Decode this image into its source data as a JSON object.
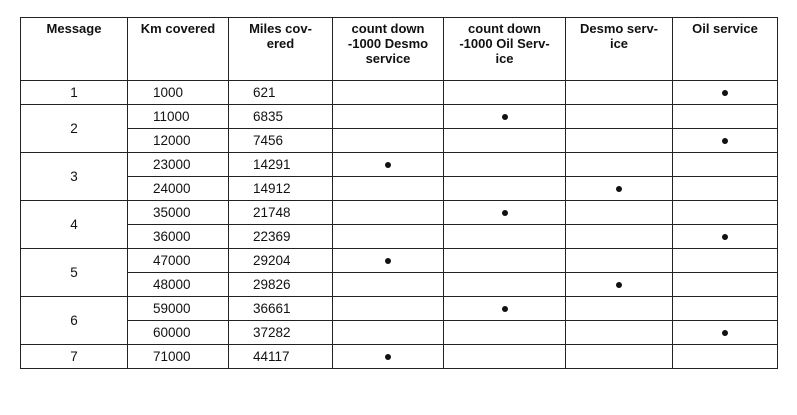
{
  "columns": [
    {
      "key": "message",
      "lines": [
        "Message"
      ]
    },
    {
      "key": "km",
      "lines": [
        "Km covered"
      ]
    },
    {
      "key": "miles",
      "lines": [
        "Miles cov-",
        "ered"
      ]
    },
    {
      "key": "desmo_countdown",
      "lines": [
        "count down",
        "-1000 Desmo",
        "service"
      ]
    },
    {
      "key": "oil_countdown",
      "lines": [
        "count down",
        "-1000 Oil Serv-",
        "ice"
      ]
    },
    {
      "key": "desmo_service",
      "lines": [
        "Desmo serv-",
        "ice"
      ]
    },
    {
      "key": "oil_service",
      "lines": [
        "Oil service"
      ]
    }
  ],
  "marker_icon": "bullet-dot-icon",
  "groups": [
    {
      "message": "1",
      "rows": [
        {
          "km": "1000",
          "miles": "621",
          "marks": [
            "oil_service"
          ]
        }
      ]
    },
    {
      "message": "2",
      "rows": [
        {
          "km": "11000",
          "miles": "6835",
          "marks": [
            "oil_countdown"
          ]
        },
        {
          "km": "12000",
          "miles": "7456",
          "marks": [
            "oil_service"
          ]
        }
      ]
    },
    {
      "message": "3",
      "rows": [
        {
          "km": "23000",
          "miles": "14291",
          "marks": [
            "desmo_countdown"
          ]
        },
        {
          "km": "24000",
          "miles": "14912",
          "marks": [
            "desmo_service"
          ]
        }
      ]
    },
    {
      "message": "4",
      "rows": [
        {
          "km": "35000",
          "miles": "21748",
          "marks": [
            "oil_countdown"
          ]
        },
        {
          "km": "36000",
          "miles": "22369",
          "marks": [
            "oil_service"
          ]
        }
      ]
    },
    {
      "message": "5",
      "rows": [
        {
          "km": "47000",
          "miles": "29204",
          "marks": [
            "desmo_countdown"
          ]
        },
        {
          "km": "48000",
          "miles": "29826",
          "marks": [
            "desmo_service"
          ]
        }
      ]
    },
    {
      "message": "6",
      "rows": [
        {
          "km": "59000",
          "miles": "36661",
          "marks": [
            "oil_countdown"
          ]
        },
        {
          "km": "60000",
          "miles": "37282",
          "marks": [
            "oil_service"
          ]
        }
      ]
    },
    {
      "message": "7",
      "rows": [
        {
          "km": "71000",
          "miles": "44117",
          "marks": [
            "desmo_countdown"
          ]
        }
      ]
    }
  ]
}
